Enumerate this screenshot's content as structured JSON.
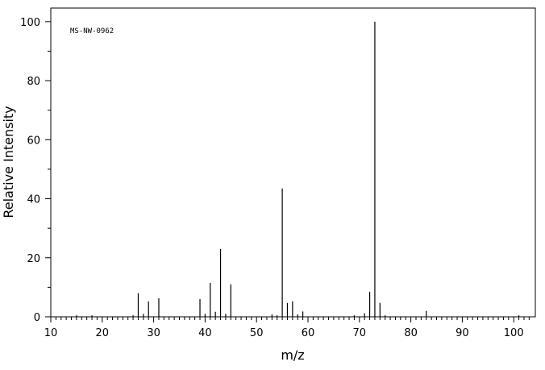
{
  "chart_data": {
    "type": "bar",
    "annotation": "MS-NW-0962",
    "x_label": "m/z",
    "y_label": "Relative Intensity",
    "color": "#000000",
    "x": [
      15,
      18,
      26,
      27,
      28,
      29,
      31,
      39,
      40,
      41,
      42,
      43,
      44,
      45,
      53,
      54,
      55,
      56,
      57,
      58,
      59,
      69,
      71,
      72,
      73,
      74,
      75,
      83,
      101
    ],
    "values": [
      0.5,
      0.5,
      0.5,
      8,
      1,
      5.2,
      6.3,
      6,
      1,
      11.5,
      1.7,
      23,
      1,
      11,
      0.8,
      0.5,
      43.5,
      4.7,
      5.2,
      0.8,
      1.8,
      0.5,
      1.2,
      8.5,
      100,
      4.7,
      0.5,
      2,
      0.5
    ],
    "xlim": [
      10,
      104.2
    ],
    "ylim": [
      0,
      104.6
    ],
    "xticks": [
      10,
      20,
      30,
      40,
      50,
      60,
      70,
      80,
      90,
      100
    ],
    "yticks": [
      0,
      20,
      40,
      60,
      80,
      100
    ],
    "x_minor_ticks": [
      11,
      12,
      13,
      14,
      15,
      16,
      17,
      18,
      19,
      21,
      22,
      23,
      24,
      25,
      26,
      27,
      28,
      29,
      31,
      32,
      33,
      34,
      35,
      36,
      37,
      38,
      39,
      41,
      42,
      43,
      44,
      45,
      46,
      47,
      48,
      49,
      51,
      52,
      53,
      54,
      55,
      56,
      57,
      58,
      59,
      61,
      62,
      63,
      64,
      65,
      66,
      67,
      68,
      69,
      71,
      72,
      73,
      74,
      75,
      76,
      77,
      78,
      79,
      81,
      82,
      83,
      84,
      85,
      86,
      87,
      88,
      89,
      91,
      92,
      93,
      94,
      95,
      96,
      97,
      98,
      99,
      101,
      102,
      103
    ],
    "y_minor_ticks": [
      10,
      30,
      50,
      70,
      90
    ]
  }
}
